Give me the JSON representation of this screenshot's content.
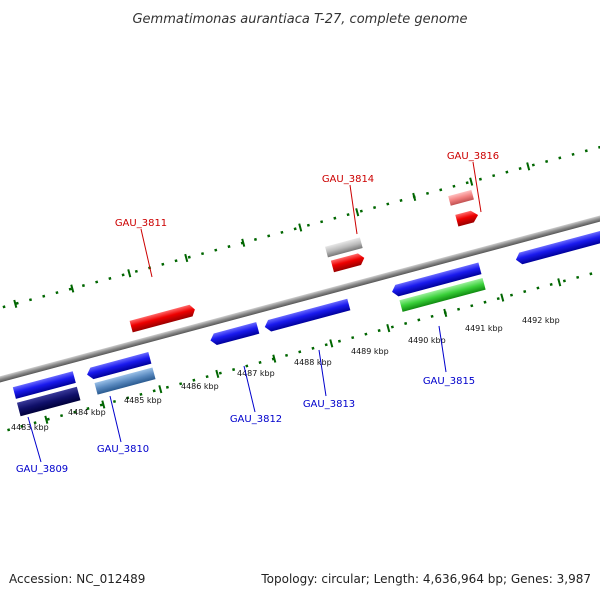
{
  "title": "Gemmatimonas aurantiaca T-27, complete genome",
  "accession": "Accession: NC_012489",
  "topology": "Topology: circular; Length: 4,636,964 bp; Genes: 3,987",
  "colors": {
    "forward_label": "#cc0000",
    "reverse_label": "#0000cc",
    "backbone": "#888888",
    "ticks": "#006600"
  },
  "scale_labels": [
    "4483 kbp",
    "4484 kbp",
    "4485 kbp",
    "4486 kbp",
    "4487 kbp",
    "4488 kbp",
    "4489 kbp",
    "4490 kbp",
    "4491 kbp",
    "4492 kbp"
  ],
  "genes": [
    {
      "name": "GAU_3809",
      "strand": "reverse"
    },
    {
      "name": "GAU_3810",
      "strand": "reverse"
    },
    {
      "name": "GAU_3811",
      "strand": "forward"
    },
    {
      "name": "GAU_3812",
      "strand": "reverse"
    },
    {
      "name": "GAU_3813",
      "strand": "reverse"
    },
    {
      "name": "GAU_3814",
      "strand": "forward"
    },
    {
      "name": "GAU_3815",
      "strand": "reverse"
    },
    {
      "name": "GAU_3816",
      "strand": "forward"
    }
  ]
}
